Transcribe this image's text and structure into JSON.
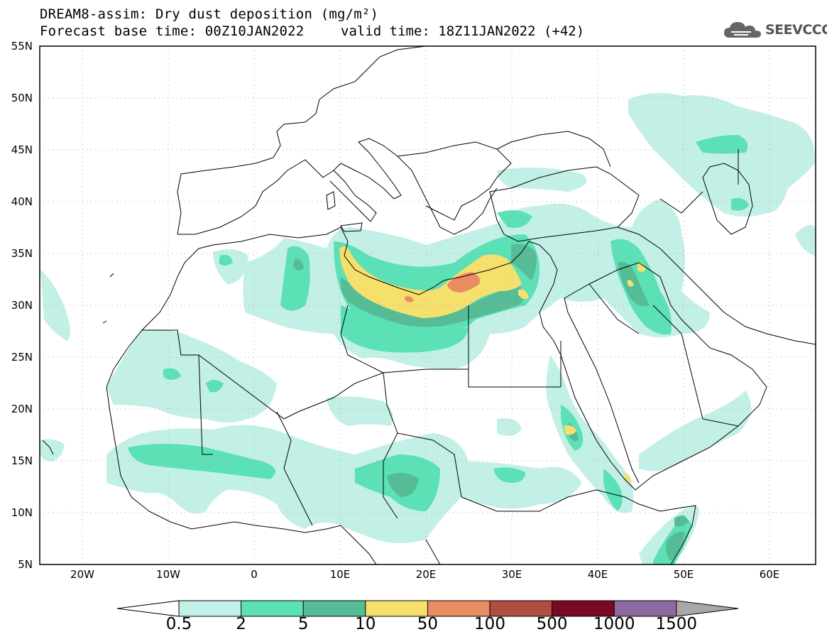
{
  "title": {
    "line1": "DREAM8-assim: Dry dust deposition (mg/m²)",
    "line2a": "Forecast base time: 00Z10JAN2022",
    "line2b": "valid time: 18Z11JAN2022 (+42)"
  },
  "logo": {
    "text": "SEEVCCC",
    "icon": "cloud-icon"
  },
  "axes": {
    "lat_labels": [
      "55N",
      "50N",
      "45N",
      "40N",
      "35N",
      "30N",
      "25N",
      "20N",
      "15N",
      "10N",
      "5N"
    ],
    "lon_labels": [
      "20W",
      "10W",
      "0",
      "10E",
      "20E",
      "30E",
      "40E",
      "50E",
      "60E"
    ]
  },
  "colorbar": {
    "labels": [
      "0.5",
      "2",
      "5",
      "10",
      "50",
      "100",
      "500",
      "1000",
      "1500"
    ],
    "colors": [
      "#c2f0e6",
      "#5ce0b6",
      "#56bc96",
      "#f5e06e",
      "#e88c62",
      "#b04e42",
      "#7a0a24",
      "#8c6aa0",
      "#a8a8a8"
    ]
  }
}
